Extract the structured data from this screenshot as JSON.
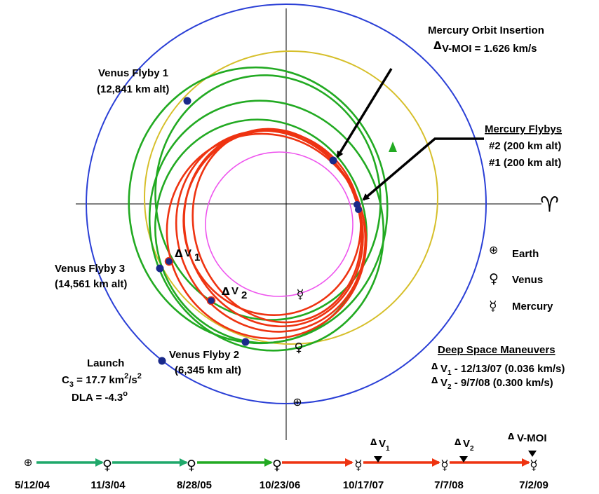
{
  "labels": {
    "moi_title": "Mercury Orbit Insertion",
    "moi_dv": "V-MOI = 1.626 km/s",
    "vf1_name": "Venus Flyby 1",
    "vf1_alt": "(12,841 km alt)",
    "mf_title": "Mercury Flybys",
    "mf2": "#2 (200 km alt)",
    "mf1": "#1 (200 km alt)",
    "vf3_name": "Venus Flyby 3",
    "vf3_alt": "(14,561 km alt)",
    "vf2_name": "Venus Flyby 2",
    "vf2_alt": "(6,345 km alt)",
    "launch": "Launch",
    "c3_pre": "C",
    "c3_sub": "3",
    "c3_mid": " = 17.7 km",
    "c3_sup1": "2",
    "c3_mid2": "/s",
    "c3_sup2": "2",
    "dla": "DLA = -4.3",
    "dla_deg": "o",
    "dv1_v": "V",
    "dv1_sub": "1",
    "dv2_v": "V",
    "dv2_sub": "2",
    "aries": "♈"
  },
  "legend": {
    "earth_symbol": "⊕",
    "earth": "Earth",
    "venus_symbol": "♀",
    "venus": "Venus",
    "mercury_symbol": "☿",
    "mercury": "Mercury"
  },
  "dsm": {
    "title": "Deep Space Maneuvers",
    "dv1_v": "V",
    "dv1_sub": "1",
    "dv1_text": " - 12/13/07 (0.036 km/s)",
    "dv2_v": "V",
    "dv2_sub": "2",
    "dv2_text": " -    9/7/08 (0.300 km/s)"
  },
  "timeline": {
    "dates": [
      "5/12/04",
      "11/3/04",
      "8/28/05",
      "10/23/06",
      "10/17/07",
      "7/7/08",
      "7/2/09"
    ],
    "dv1_v": "V",
    "dv1_sub": "1",
    "dv2_v": "V",
    "dv2_sub": "2",
    "moi": "V-MOI"
  },
  "colors": {
    "earth_orbit": "#2a3fd6",
    "venus_orbit": "#d6bf2a",
    "mercury_orbit": "#ee55ee",
    "trajectory_early": "#22aa22",
    "trajectory_late": "#ee3311",
    "timeline_green": "#1fa86a",
    "marker": "#1a2a8a"
  }
}
